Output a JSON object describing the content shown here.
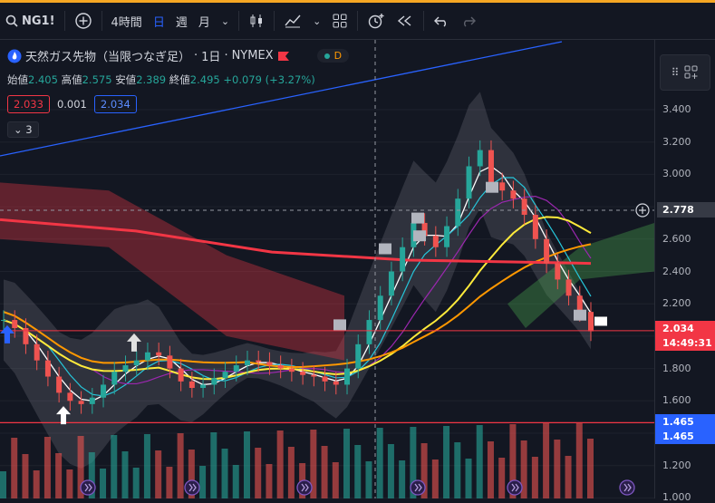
{
  "toolbar": {
    "symbol": "NG1!",
    "timeframe": "4時間",
    "day": "日",
    "week": "週",
    "month": "月"
  },
  "legend": {
    "title": "天然ガス先物（当限つなぎ足）",
    "interval": "1日",
    "exchange": "NYMEX",
    "badge": "D",
    "open_label": "始値",
    "open": "2.405",
    "high_label": "高値",
    "high": "2.575",
    "low_label": "安値",
    "low": "2.389",
    "close_label": "終値",
    "close": "2.495",
    "change": "+0.079 (+3.27%)",
    "bid": "2.033",
    "spread": "0.001",
    "ask": "2.034",
    "collapse_count": "3"
  },
  "colors": {
    "up": "#26a69a",
    "down": "#ef5350",
    "ma_red": "#f23645",
    "ma_orange": "#ff9800",
    "ma_yellow": "#ffeb3b",
    "ma_purple": "#9c27b0",
    "ma_cyan": "#26c6da",
    "ma_white": "#ffffff",
    "trend": "#2962ff",
    "price_line": "#f23645"
  },
  "axis": {
    "ticks": [
      "3.400",
      "3.200",
      "3.000",
      "2.800",
      "2.600",
      "2.400",
      "2.200",
      "2.000",
      "1.800",
      "1.600",
      "1.400",
      "1.200",
      "1.000"
    ],
    "crosshair_price": "2.778",
    "last_price": "2.034",
    "countdown": "14:49:31",
    "level": "1.465",
    "level2": "1.465"
  },
  "chart_data": {
    "type": "candlestick",
    "ylim": [
      1.0,
      3.5
    ],
    "close_approx": [
      2.1,
      2.05,
      1.95,
      1.85,
      1.75,
      1.65,
      1.6,
      1.58,
      1.62,
      1.7,
      1.78,
      1.82,
      1.85,
      1.9,
      1.88,
      1.8,
      1.72,
      1.68,
      1.7,
      1.74,
      1.78,
      1.82,
      1.85,
      1.84,
      1.82,
      1.8,
      1.78,
      1.76,
      1.75,
      1.72,
      1.7,
      1.8,
      1.95,
      2.1,
      2.25,
      2.4,
      2.55,
      2.7,
      2.62,
      2.55,
      2.68,
      2.85,
      3.05,
      3.15,
      2.95,
      2.9,
      2.85,
      2.75,
      2.6,
      2.45,
      2.35,
      2.25,
      2.15,
      2.03
    ],
    "price_line": 2.034,
    "level_line": 1.465
  }
}
